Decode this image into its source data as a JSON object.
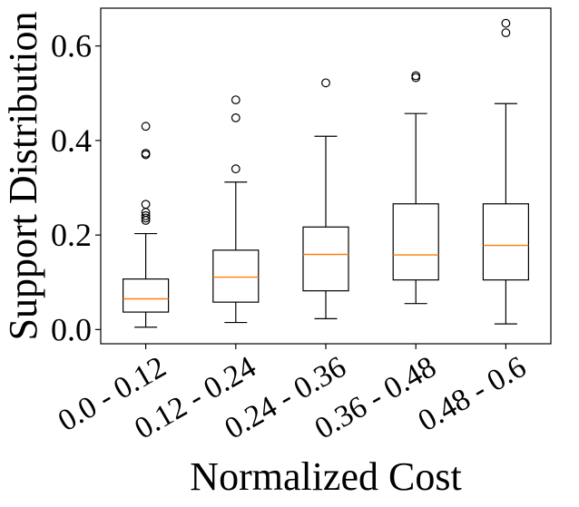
{
  "chart_data": {
    "type": "box",
    "title": "",
    "xlabel": "Normalized Cost",
    "ylabel": "Support Distribution",
    "ylim": [
      -0.03,
      0.68
    ],
    "yticks": [
      0.0,
      0.2,
      0.4,
      0.6
    ],
    "ytick_labels": [
      "0.0",
      "0.2",
      "0.4",
      "0.6"
    ],
    "grid": false,
    "colors": {
      "box": "#000000",
      "median": "#ff7f0e"
    },
    "categories": [
      "0.0 - 0.12",
      "0.12 - 0.24",
      "0.24 - 0.36",
      "0.36 - 0.48",
      "0.48 - 0.6"
    ],
    "boxes": [
      {
        "whisker_low": 0.005,
        "q1": 0.037,
        "median": 0.065,
        "q3": 0.107,
        "whisker_high": 0.203,
        "fliers": [
          0.231,
          0.236,
          0.241,
          0.248,
          0.265,
          0.37,
          0.373,
          0.43
        ]
      },
      {
        "whisker_low": 0.015,
        "q1": 0.058,
        "median": 0.111,
        "q3": 0.168,
        "whisker_high": 0.312,
        "fliers": [
          0.34,
          0.448,
          0.486
        ]
      },
      {
        "whisker_low": 0.023,
        "q1": 0.082,
        "median": 0.159,
        "q3": 0.217,
        "whisker_high": 0.409,
        "fliers": [
          0.522
        ]
      },
      {
        "whisker_low": 0.055,
        "q1": 0.105,
        "median": 0.158,
        "q3": 0.266,
        "whisker_high": 0.457,
        "fliers": [
          0.533,
          0.537
        ]
      },
      {
        "whisker_low": 0.012,
        "q1": 0.105,
        "median": 0.178,
        "q3": 0.266,
        "whisker_high": 0.478,
        "fliers": [
          0.628,
          0.648
        ]
      }
    ]
  }
}
